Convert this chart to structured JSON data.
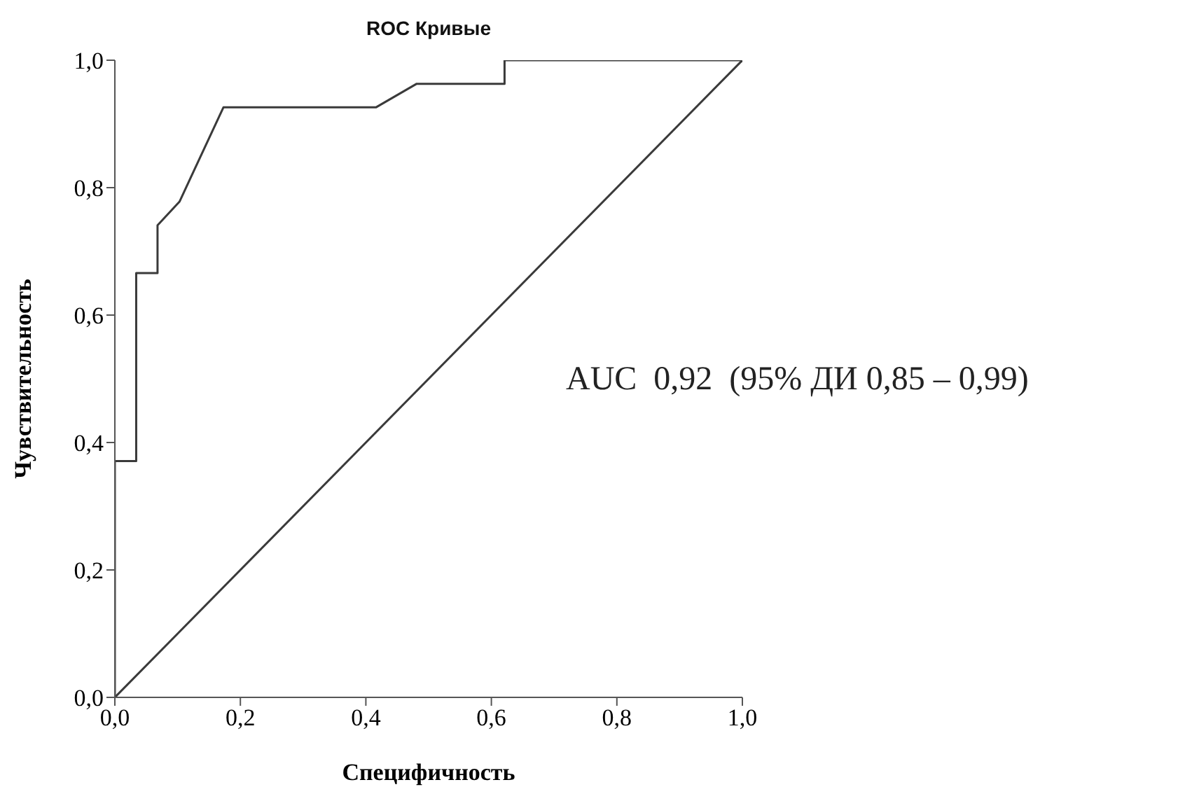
{
  "chart_data": {
    "type": "line",
    "title": "ROC Кривые",
    "xlabel": "Специфичность",
    "ylabel": "Чувствительность",
    "annotations": [
      "AUC  0,92  (95% ДИ 0,85 – 0,99)"
    ],
    "series": [
      {
        "color": "#3a3a3a",
        "x": [
          0,
          0,
          0.034,
          0.034,
          0.068,
          0.068,
          0.103,
          0.173,
          0.416,
          0.481,
          0.621,
          0.621,
          1
        ],
        "values": [
          0,
          0.371,
          0.371,
          0.666,
          0.666,
          0.741,
          0.778,
          0.926,
          0.926,
          0.963,
          0.963,
          1,
          1
        ]
      },
      {
        "color": "#3a3a3a",
        "x": [
          0,
          1
        ],
        "values": [
          0,
          1
        ]
      }
    ],
    "xlim": [
      0,
      1
    ],
    "ylim": [
      0,
      1
    ],
    "xticks": [
      {
        "value": 0,
        "label": "0,0"
      },
      {
        "value": 0.2,
        "label": "0,2"
      },
      {
        "value": 0.4,
        "label": "0,4"
      },
      {
        "value": 0.6,
        "label": "0,6"
      },
      {
        "value": 0.8,
        "label": "0,8"
      },
      {
        "value": 1,
        "label": "1,0"
      }
    ],
    "yticks": [
      {
        "value": 0,
        "label": "0,0"
      },
      {
        "value": 0.2,
        "label": "0,2"
      },
      {
        "value": 0.4,
        "label": "0,4"
      },
      {
        "value": 0.6,
        "label": "0,6"
      },
      {
        "value": 0.8,
        "label": "0,8"
      },
      {
        "value": 1,
        "label": "1,0"
      }
    ],
    "grid": false,
    "legend": false,
    "marker": "none",
    "line_style": "solid"
  }
}
